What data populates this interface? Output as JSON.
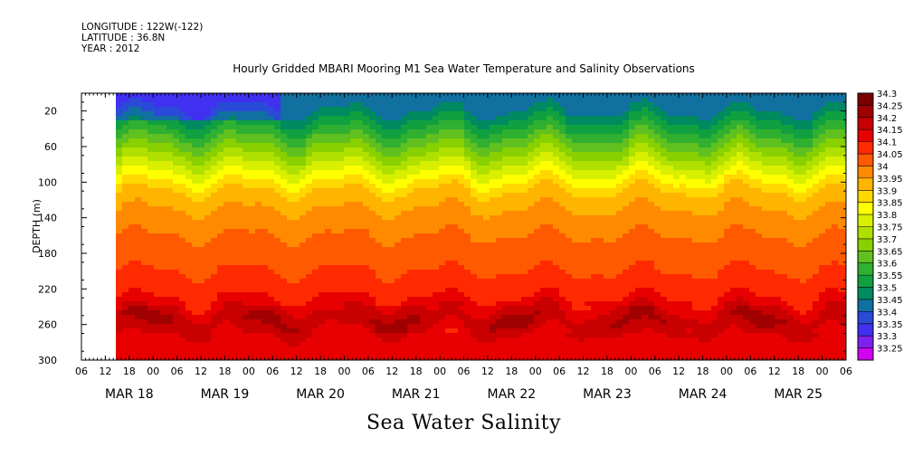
{
  "header": {
    "longitude": "LONGITUDE : 122W(-122)",
    "latitude": "LATITUDE : 36.8N",
    "year": "YEAR : 2012"
  },
  "chart_data": {
    "type": "heatmap",
    "title": "Hourly Gridded MBARI Mooring M1 Sea Water Temperature and Salinity Observations",
    "subtitle": "Sea Water Salinity",
    "ylabel": "DEPTH (m)",
    "xlabel": "",
    "ylim": [
      300,
      0
    ],
    "y_ticks": [
      20,
      60,
      100,
      140,
      180,
      220,
      260,
      300
    ],
    "x_hour_ticks": [
      "06",
      "12",
      "18",
      "00",
      "06",
      "12",
      "18",
      "00",
      "06",
      "12",
      "18",
      "00",
      "06",
      "12",
      "18",
      "00",
      "06",
      "12",
      "18",
      "00",
      "06",
      "12",
      "18",
      "00",
      "06",
      "12",
      "18",
      "00",
      "06",
      "12",
      "18",
      "00",
      "06"
    ],
    "x_date_labels": [
      "MAR 18",
      "MAR 19",
      "MAR 20",
      "MAR 21",
      "MAR 22",
      "MAR 23",
      "MAR 24",
      "MAR 25"
    ],
    "x_start": "2012-03-17 06:00",
    "data_start": "2012-03-17 13:00",
    "x_end": "2012-03-25 06:00",
    "salinity_profile": [
      {
        "depth": 10,
        "salinity": 33.45
      },
      {
        "depth": 30,
        "salinity": 33.55
      },
      {
        "depth": 50,
        "salinity": 33.65
      },
      {
        "depth": 70,
        "salinity": 33.75
      },
      {
        "depth": 90,
        "salinity": 33.85
      },
      {
        "depth": 110,
        "salinity": 33.95
      },
      {
        "depth": 130,
        "salinity": 34.0
      },
      {
        "depth": 160,
        "salinity": 34.05
      },
      {
        "depth": 200,
        "salinity": 34.1
      },
      {
        "depth": 230,
        "salinity": 34.15
      },
      {
        "depth": 255,
        "salinity": 34.25
      },
      {
        "depth": 285,
        "salinity": 34.15
      }
    ],
    "colorbar": {
      "levels": [
        "34.3",
        "34.25",
        "34.2",
        "34.15",
        "34.1",
        "34.05",
        "34",
        "33.95",
        "33.9",
        "33.85",
        "33.8",
        "33.75",
        "33.7",
        "33.65",
        "33.6",
        "33.55",
        "33.5",
        "33.45",
        "33.4",
        "33.35",
        "33.3",
        "33.25"
      ],
      "colors": [
        "#7a0000",
        "#a00000",
        "#c80000",
        "#e80000",
        "#ff2a00",
        "#ff5a00",
        "#ff8a00",
        "#ffb400",
        "#ffd800",
        "#ffff00",
        "#d8f000",
        "#b0e000",
        "#88d000",
        "#60c020",
        "#30b030",
        "#10a040",
        "#008a60",
        "#1070a0",
        "#2a4ad8",
        "#4030f0",
        "#8020f0",
        "#d000f0"
      ]
    }
  }
}
